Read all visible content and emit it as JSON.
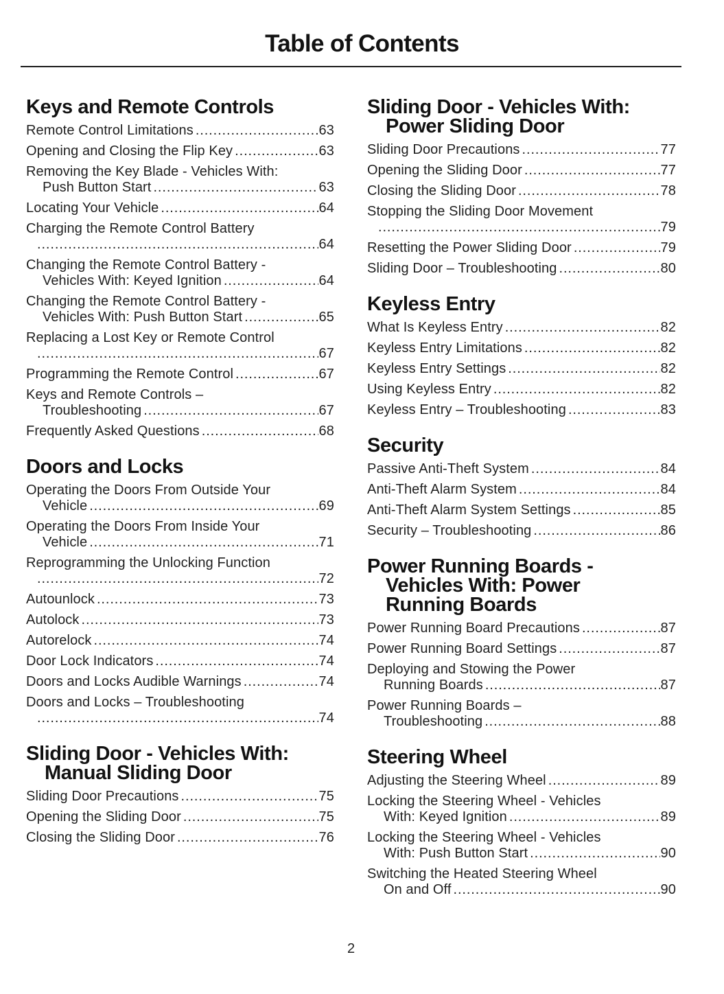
{
  "header": {
    "title": "Table of Contents"
  },
  "footer": {
    "page_number": "2"
  },
  "columns": [
    {
      "sections": [
        {
          "heading_lines": [
            "Keys and Remote Controls"
          ],
          "entries": [
            {
              "lines": [
                "Remote Control Limitations"
              ],
              "page": "63"
            },
            {
              "lines": [
                "Opening and Closing the Flip Key"
              ],
              "page": "63"
            },
            {
              "lines": [
                "Removing the Key Blade - Vehicles With:",
                "Push Button Start"
              ],
              "page": "63"
            },
            {
              "lines": [
                "Locating Your Vehicle"
              ],
              "page": "64"
            },
            {
              "lines": [
                "Charging the Remote Control Battery",
                ""
              ],
              "page": "64"
            },
            {
              "lines": [
                "Changing the Remote Control Battery -",
                "Vehicles With: Keyed Ignition"
              ],
              "page": "64"
            },
            {
              "lines": [
                "Changing the Remote Control Battery -",
                "Vehicles With: Push Button Start"
              ],
              "page": "65"
            },
            {
              "lines": [
                "Replacing a Lost Key or Remote Control",
                ""
              ],
              "page": "67"
            },
            {
              "lines": [
                "Programming the Remote Control"
              ],
              "page": "67"
            },
            {
              "lines": [
                "Keys and Remote Controls –",
                "Troubleshooting"
              ],
              "page": "67"
            },
            {
              "lines": [
                "Frequently Asked Questions"
              ],
              "page": "68"
            }
          ]
        },
        {
          "heading_lines": [
            "Doors and Locks"
          ],
          "entries": [
            {
              "lines": [
                "Operating the Doors From Outside Your",
                "Vehicle"
              ],
              "page": "69"
            },
            {
              "lines": [
                "Operating the Doors From Inside Your",
                "Vehicle"
              ],
              "page": "71"
            },
            {
              "lines": [
                "Reprogramming the Unlocking Function",
                ""
              ],
              "page": "72"
            },
            {
              "lines": [
                "Autounlock"
              ],
              "page": "73"
            },
            {
              "lines": [
                "Autolock"
              ],
              "page": "73"
            },
            {
              "lines": [
                "Autorelock"
              ],
              "page": "74"
            },
            {
              "lines": [
                "Door Lock Indicators"
              ],
              "page": "74"
            },
            {
              "lines": [
                "Doors and Locks Audible Warnings"
              ],
              "page": "74"
            },
            {
              "lines": [
                "Doors and Locks – Troubleshooting",
                ""
              ],
              "page": "74"
            }
          ]
        },
        {
          "heading_lines": [
            "Sliding Door - Vehicles With:",
            "Manual Sliding Door"
          ],
          "entries": [
            {
              "lines": [
                "Sliding Door Precautions"
              ],
              "page": "75"
            },
            {
              "lines": [
                "Opening the Sliding Door"
              ],
              "page": "75"
            },
            {
              "lines": [
                "Closing the Sliding Door"
              ],
              "page": "76"
            }
          ]
        }
      ]
    },
    {
      "sections": [
        {
          "heading_lines": [
            "Sliding Door - Vehicles With:",
            "Power Sliding Door"
          ],
          "entries": [
            {
              "lines": [
                "Sliding Door Precautions"
              ],
              "page": "77"
            },
            {
              "lines": [
                "Opening the Sliding Door"
              ],
              "page": "77"
            },
            {
              "lines": [
                "Closing the Sliding Door"
              ],
              "page": "78"
            },
            {
              "lines": [
                "Stopping the Sliding Door Movement",
                ""
              ],
              "page": "79"
            },
            {
              "lines": [
                "Resetting the Power Sliding Door"
              ],
              "page": "79"
            },
            {
              "lines": [
                "Sliding Door – Troubleshooting"
              ],
              "page": "80"
            }
          ]
        },
        {
          "heading_lines": [
            "Keyless Entry"
          ],
          "entries": [
            {
              "lines": [
                "What Is Keyless Entry"
              ],
              "page": "82"
            },
            {
              "lines": [
                "Keyless Entry Limitations"
              ],
              "page": "82"
            },
            {
              "lines": [
                "Keyless Entry Settings"
              ],
              "page": "82"
            },
            {
              "lines": [
                "Using Keyless Entry"
              ],
              "page": "82"
            },
            {
              "lines": [
                "Keyless Entry – Troubleshooting"
              ],
              "page": "83"
            }
          ]
        },
        {
          "heading_lines": [
            "Security"
          ],
          "entries": [
            {
              "lines": [
                "Passive Anti-Theft System"
              ],
              "page": "84"
            },
            {
              "lines": [
                "Anti-Theft Alarm System"
              ],
              "page": "84"
            },
            {
              "lines": [
                "Anti-Theft Alarm System Settings"
              ],
              "page": "85"
            },
            {
              "lines": [
                "Security – Troubleshooting"
              ],
              "page": "86"
            }
          ]
        },
        {
          "heading_lines": [
            "Power Running Boards -",
            "Vehicles With: Power",
            "Running Boards"
          ],
          "entries": [
            {
              "lines": [
                "Power Running Board Precautions"
              ],
              "page": "87"
            },
            {
              "lines": [
                "Power Running Board Settings"
              ],
              "page": "87"
            },
            {
              "lines": [
                "Deploying and Stowing the Power",
                "Running Boards"
              ],
              "page": "87"
            },
            {
              "lines": [
                "Power Running Boards –",
                "Troubleshooting"
              ],
              "page": "88"
            }
          ]
        },
        {
          "heading_lines": [
            "Steering Wheel"
          ],
          "entries": [
            {
              "lines": [
                "Adjusting the Steering Wheel"
              ],
              "page": "89"
            },
            {
              "lines": [
                "Locking the Steering Wheel - Vehicles",
                "With: Keyed Ignition"
              ],
              "page": "89"
            },
            {
              "lines": [
                "Locking the Steering Wheel - Vehicles",
                "With: Push Button Start"
              ],
              "page": "90"
            },
            {
              "lines": [
                "Switching the Heated Steering Wheel",
                "On and Off"
              ],
              "page": "90"
            }
          ]
        }
      ]
    }
  ]
}
